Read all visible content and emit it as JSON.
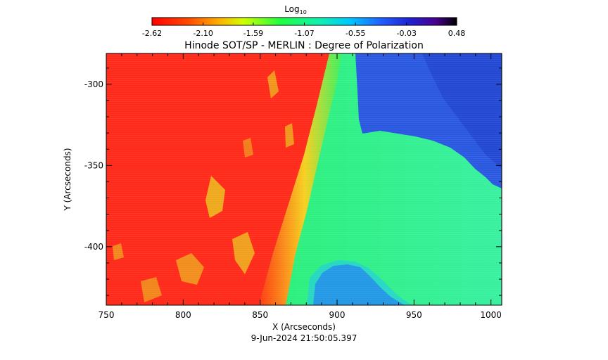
{
  "colorbar": {
    "label": "Log",
    "label_subscript": "10",
    "ticks": [
      "-2.62",
      "-2.10",
      "-1.59",
      "-1.07",
      "-0.55",
      "-0.03",
      "0.48"
    ],
    "range": [
      -2.62,
      0.48
    ]
  },
  "chart_data": {
    "type": "heatmap",
    "title": "Hinode SOT/SP - MERLIN : Degree of Polarization",
    "xlabel": "X (Arcseconds)",
    "ylabel": "Y (Arcseconds)",
    "xlim": [
      750,
      1007
    ],
    "ylim": [
      -436,
      -281
    ],
    "x_ticks": [
      750,
      800,
      850,
      900,
      950,
      1000
    ],
    "y_ticks": [
      -300,
      -350,
      -400
    ],
    "x_tick_labels": [
      "750",
      "800",
      "850",
      "900",
      "950",
      "1000"
    ],
    "y_tick_labels": [
      "-300",
      "-350",
      "-400"
    ],
    "value_label": "Log10 Degree of Polarization",
    "regions": {
      "disk": -2.62,
      "limb": -1.59,
      "off_limb_near": -1.07,
      "off_limb_far": -0.55
    }
  },
  "footer": {
    "timestamp": "9-Jun-2024 21:50:05.397"
  },
  "colors": {
    "disk": "#ff2a1a",
    "limb_yellow": "#d8f22a",
    "near_green": "#22f26a",
    "mid_green": "#39f08a",
    "cyan": "#22c8e8",
    "blue_region": "#2a58e0",
    "dark_blue": "#1e38c8"
  }
}
